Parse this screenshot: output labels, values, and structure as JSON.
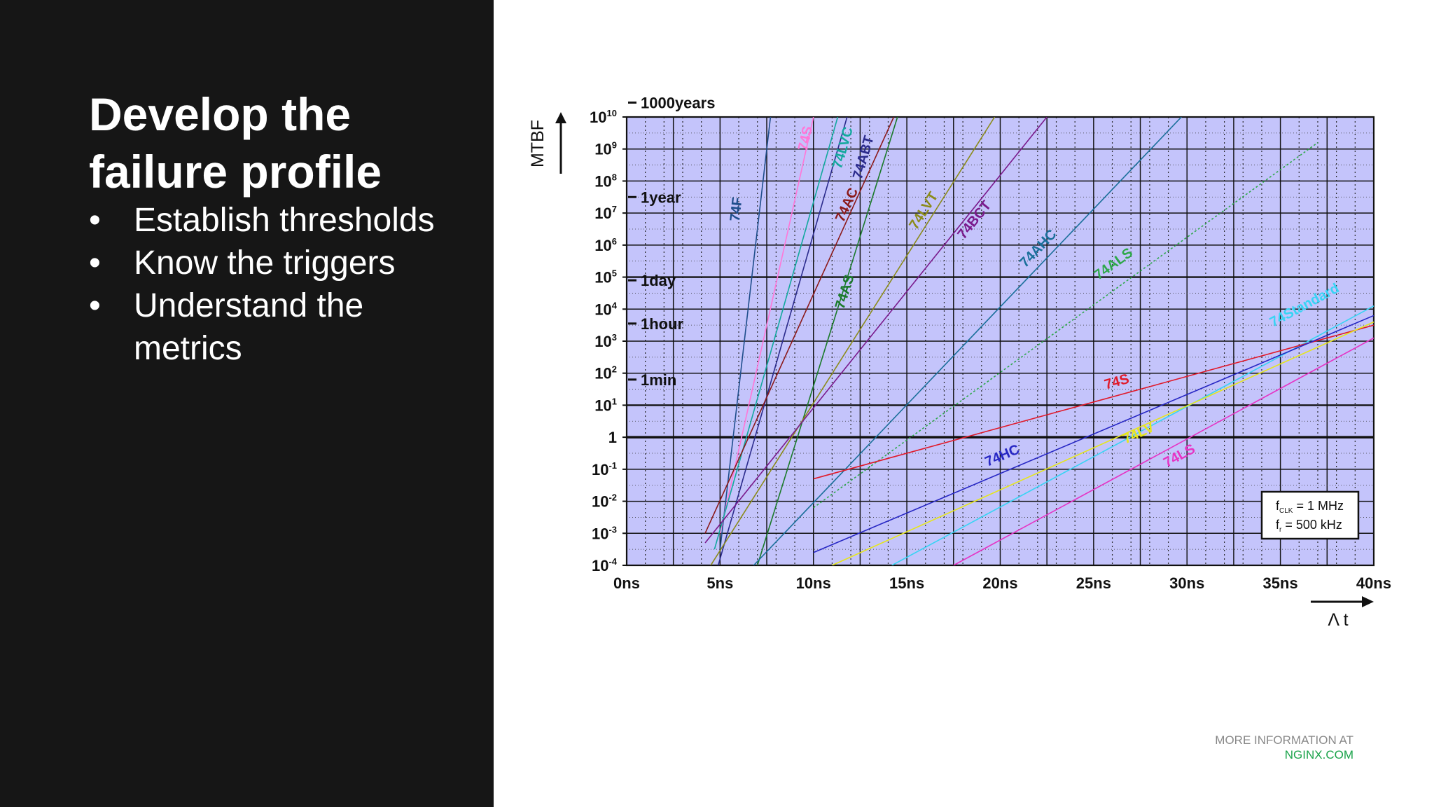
{
  "slide": {
    "title_line1": "Develop the",
    "title_line2": "failure profile",
    "bullets": [
      "Establish thresholds",
      "Know the triggers",
      "Understand the metrics"
    ],
    "bullet_glyph": "•"
  },
  "footer": {
    "line1": "MORE INFORMATION AT",
    "line2": "NGINX.COM"
  },
  "colors": {
    "left_panel": "#161616",
    "plot_bg": "#c4c4fb",
    "footer_link": "#1aa34a"
  },
  "chart_data": {
    "type": "line",
    "title": "",
    "xlabel": "Λ t",
    "ylabel": "MTBF",
    "xlim": [
      0,
      40
    ],
    "ylim_exp": [
      -4,
      10
    ],
    "y_scale": "log",
    "x_ticks": [
      "0ns",
      "5ns",
      "10ns",
      "15ns",
      "20ns",
      "25ns",
      "30ns",
      "35ns",
      "40ns"
    ],
    "x_tick_values": [
      0,
      5,
      10,
      15,
      20,
      25,
      30,
      35,
      40
    ],
    "y_ticks": [
      {
        "exp": 10,
        "base": "10",
        "sup": "10"
      },
      {
        "exp": 9,
        "base": "10",
        "sup": "9"
      },
      {
        "exp": 8,
        "base": "10",
        "sup": "8"
      },
      {
        "exp": 7,
        "base": "10",
        "sup": "7"
      },
      {
        "exp": 6,
        "base": "10",
        "sup": "6"
      },
      {
        "exp": 5,
        "base": "10",
        "sup": "5"
      },
      {
        "exp": 4,
        "base": "10",
        "sup": "4"
      },
      {
        "exp": 3,
        "base": "10",
        "sup": "3"
      },
      {
        "exp": 2,
        "base": "10",
        "sup": "2"
      },
      {
        "exp": 1,
        "base": "10",
        "sup": "1"
      },
      {
        "exp": 0,
        "base": "1",
        "sup": ""
      },
      {
        "exp": -1,
        "base": "10",
        "sup": "-1"
      },
      {
        "exp": -2,
        "base": "10",
        "sup": "-2"
      },
      {
        "exp": -3,
        "base": "10",
        "sup": "-3"
      },
      {
        "exp": -4,
        "base": "10",
        "sup": "-4"
      }
    ],
    "time_markers": [
      {
        "label": "1000years",
        "exp": 10.45
      },
      {
        "label": "1year",
        "exp": 7.5
      },
      {
        "label": "1day",
        "exp": 4.9
      },
      {
        "label": "1hour",
        "exp": 3.55
      },
      {
        "label": "1min",
        "exp": 1.8
      }
    ],
    "grid": true,
    "legend": "none",
    "annotation": {
      "line1_main": "f",
      "line1_sub": "CLK",
      "line1_rest": " = 1 MHz",
      "line2_main": "f",
      "line2_sub": "r",
      "line2_rest": " = 500 kHz"
    },
    "series": [
      {
        "name": "74F",
        "color": "#1f4e8c",
        "points": [
          [
            5,
            -3.5
          ],
          [
            7.7,
            10
          ]
        ],
        "label_x": 6.1,
        "label_exp": 7.1
      },
      {
        "name": "74S",
        "color": "#ff77d8",
        "points": [
          [
            5,
            -3.0
          ],
          [
            10,
            10
          ]
        ],
        "label_x": 9.8,
        "label_exp": 9.3
      },
      {
        "name": "74LVC",
        "color": "#13a89e",
        "points": [
          [
            4.7,
            -3.5
          ],
          [
            11.3,
            10
          ]
        ],
        "label_x": 11.8,
        "label_exp": 9.0
      },
      {
        "name": "74ABT",
        "color": "#2b2b8c",
        "points": [
          [
            4.9,
            -4
          ],
          [
            11.8,
            10
          ]
        ],
        "label_x": 12.9,
        "label_exp": 8.7
      },
      {
        "name": "74AC",
        "color": "#8b1a1a",
        "points": [
          [
            4.2,
            -3
          ],
          [
            14.3,
            10
          ]
        ],
        "label_x": 12.0,
        "label_exp": 7.2
      },
      {
        "name": "74AS",
        "color": "#1a7a2a",
        "points": [
          [
            7.0,
            -4
          ],
          [
            14.5,
            10
          ]
        ],
        "label_x": 11.9,
        "label_exp": 4.5
      },
      {
        "name": "74LVT",
        "color": "#8b8b1a",
        "points": [
          [
            4.5,
            -4
          ],
          [
            19.7,
            10
          ]
        ],
        "label_x": 16.1,
        "label_exp": 7.0
      },
      {
        "name": "74BCT",
        "color": "#7a1a8c",
        "points": [
          [
            4.2,
            -3.3
          ],
          [
            22.5,
            10
          ]
        ],
        "label_x": 18.8,
        "label_exp": 6.7
      },
      {
        "name": "74AHC",
        "color": "#1a6f9a",
        "points": [
          [
            6.8,
            -4
          ],
          [
            29.7,
            10
          ]
        ],
        "label_x": 22.2,
        "label_exp": 5.8
      },
      {
        "name": "74ALS",
        "color": "#2ea84a",
        "points": [
          [
            10,
            -2.2
          ],
          [
            37.0,
            9.2
          ]
        ],
        "dashed": true,
        "label_x": 26.2,
        "label_exp": 5.3
      },
      {
        "name": "74Standard",
        "color": "#38d4f4",
        "points": [
          [
            14.2,
            -4
          ],
          [
            40,
            4.1
          ]
        ],
        "label_x": 36.4,
        "label_exp": 4.0
      },
      {
        "name": "74S",
        "color": "#e01a2a",
        "points": [
          [
            10,
            -1.3
          ],
          [
            40,
            3.5
          ]
        ],
        "label_x": 26.3,
        "label_exp": 1.6
      },
      {
        "name": "74HC",
        "color": "#2727c4",
        "points": [
          [
            10,
            -3.6
          ],
          [
            40,
            3.8
          ]
        ],
        "label_x": 20.2,
        "label_exp": -0.7
      },
      {
        "name": "74LV",
        "color": "#e6e61a",
        "points": [
          [
            11,
            -4
          ],
          [
            40,
            3.6
          ]
        ],
        "label_x": 27.5,
        "label_exp": 0.0
      },
      {
        "name": "74LS",
        "color": "#e633c4",
        "points": [
          [
            17.5,
            -4
          ],
          [
            40,
            3.1
          ]
        ],
        "label_x": 29.7,
        "label_exp": -0.7
      }
    ]
  }
}
